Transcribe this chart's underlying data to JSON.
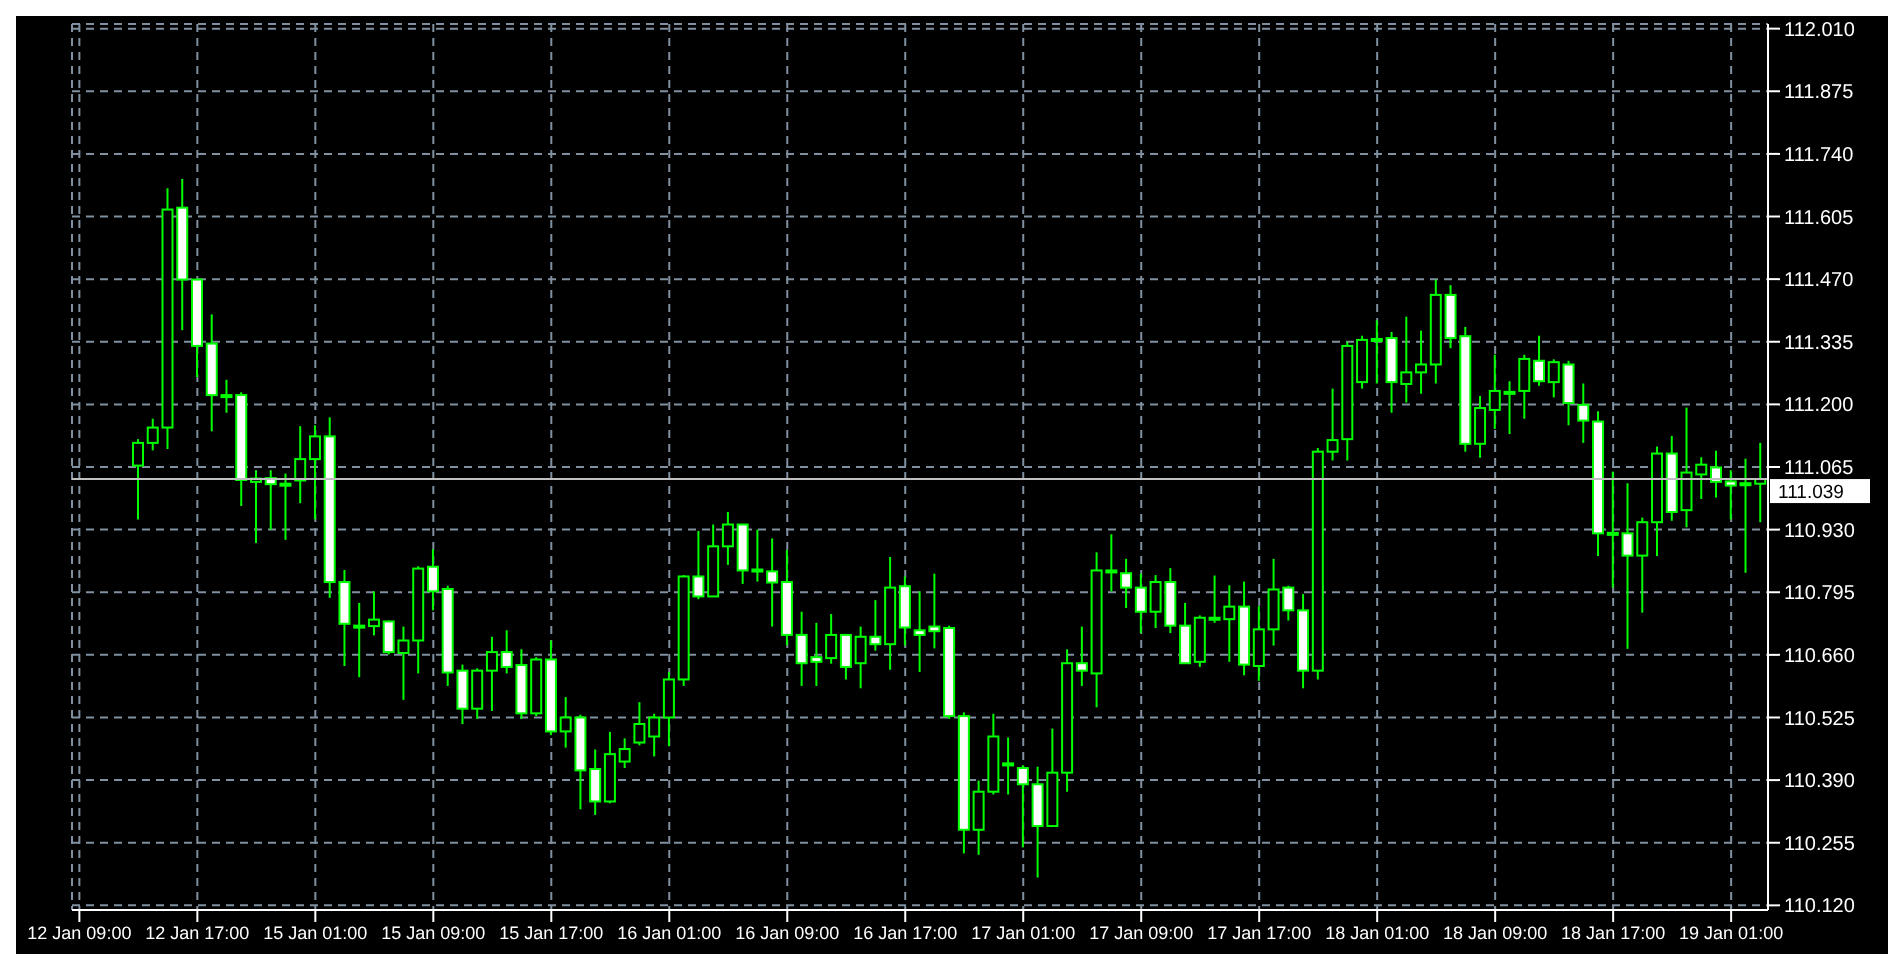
{
  "chart_data": {
    "type": "candlestick",
    "categories": [
      "12 Jan 09:00",
      null,
      null,
      null,
      null,
      null,
      null,
      null,
      "12 Jan 17:00",
      null,
      null,
      null,
      null,
      null,
      null,
      null,
      "15 Jan 01:00",
      null,
      null,
      null,
      null,
      null,
      null,
      null,
      "15 Jan 09:00",
      null,
      null,
      null,
      null,
      null,
      null,
      null,
      "15 Jan 17:00",
      null,
      null,
      null,
      null,
      null,
      null,
      null,
      "16 Jan 01:00",
      null,
      null,
      null,
      null,
      null,
      null,
      null,
      "16 Jan 09:00",
      null,
      null,
      null,
      null,
      null,
      null,
      null,
      "16 Jan 17:00",
      null,
      null,
      null,
      null,
      null,
      null,
      null,
      "17 Jan 01:00",
      null,
      null,
      null,
      null,
      null,
      null,
      null,
      "17 Jan 09:00",
      null,
      null,
      null,
      null,
      null,
      null,
      null,
      "17 Jan 17:00",
      null,
      null,
      null,
      null,
      null,
      null,
      null,
      "18 Jan 01:00",
      null,
      null,
      null,
      null,
      null,
      null,
      null,
      "18 Jan 09:00",
      null,
      null,
      null,
      null,
      null,
      null,
      null,
      "18 Jan 17:00",
      null,
      null,
      null,
      null,
      null,
      null,
      null,
      "19 Jan 01:00",
      null,
      null
    ],
    "ohlc": [
      null,
      null,
      null,
      null,
      [
        111.068,
        111.125,
        110.952,
        111.117
      ],
      [
        111.117,
        111.169,
        111.101,
        111.15
      ],
      [
        111.15,
        111.666,
        111.104,
        111.62
      ],
      [
        111.624,
        111.686,
        111.36,
        111.469
      ],
      [
        111.469,
        111.469,
        111.259,
        111.326
      ],
      [
        111.331,
        111.394,
        111.142,
        111.22
      ],
      [
        111.22,
        111.253,
        111.182,
        111.219
      ],
      [
        111.22,
        111.226,
        110.981,
        111.037
      ],
      [
        111.033,
        111.058,
        110.901,
        111.04
      ],
      [
        111.041,
        111.058,
        110.93,
        111.028
      ],
      [
        111.029,
        111.051,
        110.908,
        111.026
      ],
      [
        111.036,
        111.153,
        110.987,
        111.082
      ],
      [
        111.082,
        111.155,
        110.952,
        111.131
      ],
      [
        111.131,
        111.172,
        110.783,
        110.817
      ],
      [
        110.817,
        110.843,
        110.636,
        110.727
      ],
      [
        110.723,
        110.772,
        110.612,
        110.722
      ],
      [
        110.722,
        110.797,
        110.702,
        110.736
      ],
      [
        110.732,
        110.734,
        110.661,
        110.666
      ],
      [
        110.664,
        110.721,
        110.563,
        110.691
      ],
      [
        110.691,
        110.851,
        110.62,
        110.846
      ],
      [
        110.85,
        110.888,
        110.756,
        110.797
      ],
      [
        110.802,
        110.809,
        110.593,
        110.622
      ],
      [
        110.626,
        110.639,
        110.511,
        110.544
      ],
      [
        110.544,
        110.631,
        110.522,
        110.626
      ],
      [
        110.626,
        110.699,
        110.539,
        110.666
      ],
      [
        110.666,
        110.713,
        110.62,
        110.634
      ],
      [
        110.638,
        110.672,
        110.522,
        110.534
      ],
      [
        110.534,
        110.655,
        110.528,
        110.65
      ],
      [
        110.65,
        110.691,
        110.487,
        110.495
      ],
      [
        110.495,
        110.569,
        110.46,
        110.525
      ],
      [
        110.525,
        110.531,
        110.327,
        110.411
      ],
      [
        110.414,
        110.456,
        110.315,
        110.344
      ],
      [
        110.344,
        110.494,
        110.34,
        110.446
      ],
      [
        110.43,
        110.48,
        110.416,
        110.457
      ],
      [
        110.471,
        110.558,
        110.465,
        110.511
      ],
      [
        110.484,
        110.533,
        110.441,
        110.525
      ],
      [
        110.525,
        110.623,
        110.463,
        110.607
      ],
      [
        110.607,
        110.832,
        110.593,
        110.829
      ],
      [
        110.829,
        110.927,
        110.78,
        110.786
      ],
      [
        110.786,
        110.941,
        110.785,
        110.894
      ],
      [
        110.894,
        110.968,
        110.854,
        110.941
      ],
      [
        110.941,
        110.942,
        110.813,
        110.842
      ],
      [
        110.844,
        110.93,
        110.818,
        110.842
      ],
      [
        110.84,
        110.911,
        110.721,
        110.816
      ],
      [
        110.817,
        110.886,
        110.681,
        110.703
      ],
      [
        110.703,
        110.753,
        110.593,
        110.642
      ],
      [
        110.655,
        110.729,
        110.593,
        110.645
      ],
      [
        110.653,
        110.748,
        110.641,
        110.703
      ],
      [
        110.703,
        110.704,
        110.607,
        110.634
      ],
      [
        110.642,
        110.721,
        110.588,
        110.699
      ],
      [
        110.699,
        110.778,
        110.669,
        110.683
      ],
      [
        110.683,
        110.871,
        110.628,
        110.805
      ],
      [
        110.808,
        110.829,
        110.68,
        110.719
      ],
      [
        110.713,
        110.797,
        110.623,
        110.703
      ],
      [
        110.721,
        110.835,
        110.674,
        110.711
      ],
      [
        110.718,
        110.723,
        110.522,
        110.528
      ],
      [
        110.528,
        110.536,
        110.232,
        110.283
      ],
      [
        110.283,
        110.389,
        110.229,
        110.365
      ],
      [
        110.365,
        110.533,
        110.359,
        110.484
      ],
      [
        110.426,
        110.482,
        110.359,
        110.423
      ],
      [
        110.416,
        110.422,
        110.245,
        110.381
      ],
      [
        110.381,
        110.419,
        110.18,
        110.291
      ],
      [
        110.291,
        110.501,
        110.29,
        110.406
      ],
      [
        110.406,
        110.672,
        110.365,
        110.642
      ],
      [
        110.642,
        110.721,
        110.593,
        110.626
      ],
      [
        110.62,
        110.881,
        110.547,
        110.842
      ],
      [
        110.842,
        110.92,
        110.797,
        110.839
      ],
      [
        110.836,
        110.867,
        110.761,
        110.805
      ],
      [
        110.805,
        110.835,
        110.707,
        110.753
      ],
      [
        110.753,
        110.832,
        110.718,
        110.817
      ],
      [
        110.817,
        110.847,
        110.707,
        110.723
      ],
      [
        110.723,
        110.772,
        110.641,
        110.642
      ],
      [
        110.645,
        110.745,
        110.634,
        110.74
      ],
      [
        110.74,
        110.831,
        110.729,
        110.737
      ],
      [
        110.737,
        110.81,
        110.645,
        110.764
      ],
      [
        110.764,
        110.818,
        110.616,
        110.639
      ],
      [
        110.636,
        110.765,
        110.604,
        110.715
      ],
      [
        110.715,
        110.867,
        110.68,
        110.801
      ],
      [
        110.805,
        110.809,
        110.734,
        110.756
      ],
      [
        110.756,
        110.791,
        110.588,
        110.626
      ],
      [
        110.626,
        111.106,
        110.607,
        111.098
      ],
      [
        111.098,
        111.234,
        111.079,
        111.123
      ],
      [
        111.125,
        111.335,
        111.079,
        111.326
      ],
      [
        111.248,
        111.348,
        111.234,
        111.339
      ],
      [
        111.341,
        111.381,
        111.245,
        111.339
      ],
      [
        111.343,
        111.356,
        111.182,
        111.248
      ],
      [
        111.244,
        111.389,
        111.204,
        111.269
      ],
      [
        111.269,
        111.359,
        111.223,
        111.286
      ],
      [
        111.286,
        111.469,
        111.245,
        111.436
      ],
      [
        111.436,
        111.457,
        111.321,
        111.343
      ],
      [
        111.347,
        111.367,
        111.098,
        111.115
      ],
      [
        111.115,
        111.218,
        111.085,
        111.192
      ],
      [
        111.188,
        111.307,
        111.147,
        111.229
      ],
      [
        111.227,
        111.25,
        111.136,
        111.225
      ],
      [
        111.229,
        111.307,
        111.169,
        111.298
      ],
      [
        111.294,
        111.348,
        111.24,
        111.25
      ],
      [
        111.248,
        111.297,
        111.215,
        111.291
      ],
      [
        111.286,
        111.294,
        111.155,
        111.203
      ],
      [
        111.199,
        111.245,
        111.117,
        111.165
      ],
      [
        111.163,
        111.185,
        110.873,
        110.922
      ],
      [
        110.923,
        111.055,
        110.805,
        110.92
      ],
      [
        110.922,
        111.03,
        110.673,
        110.874
      ],
      [
        110.874,
        110.956,
        110.751,
        110.946
      ],
      [
        110.946,
        111.109,
        110.873,
        111.094
      ],
      [
        111.094,
        111.132,
        110.949,
        110.968
      ],
      [
        110.972,
        111.193,
        110.935,
        111.053
      ],
      [
        111.049,
        111.086,
        110.996,
        111.07
      ],
      [
        111.064,
        111.1,
        110.999,
        111.033
      ],
      [
        111.034,
        111.058,
        110.952,
        111.025
      ],
      [
        111.03,
        111.083,
        110.837,
        111.028
      ],
      [
        111.029,
        111.117,
        110.946,
        111.039
      ]
    ],
    "color": "#00ff00",
    "ylim": [
      110.11,
      112.02
    ],
    "yticks": [
      {
        "value": 110.12,
        "label": "110.120"
      },
      {
        "value": 110.255,
        "label": "110.255"
      },
      {
        "value": 110.39,
        "label": "110.390"
      },
      {
        "value": 110.525,
        "label": "110.525"
      },
      {
        "value": 110.66,
        "label": "110.660"
      },
      {
        "value": 110.795,
        "label": "110.795"
      },
      {
        "value": 110.93,
        "label": "110.930"
      },
      {
        "value": 111.065,
        "label": "111.065"
      },
      {
        "value": 111.2,
        "label": "111.200"
      },
      {
        "value": 111.335,
        "label": "111.335"
      },
      {
        "value": 111.47,
        "label": "111.470"
      },
      {
        "value": 111.605,
        "label": "111.605"
      },
      {
        "value": 111.74,
        "label": "111.740"
      },
      {
        "value": 111.875,
        "label": "111.875"
      },
      {
        "value": 112.01,
        "label": "112.010"
      }
    ],
    "grid": true,
    "ref_lines": [
      {
        "axis": "y",
        "value": 111.039,
        "label": "111.039",
        "color": "#c0c0c0"
      }
    ]
  }
}
